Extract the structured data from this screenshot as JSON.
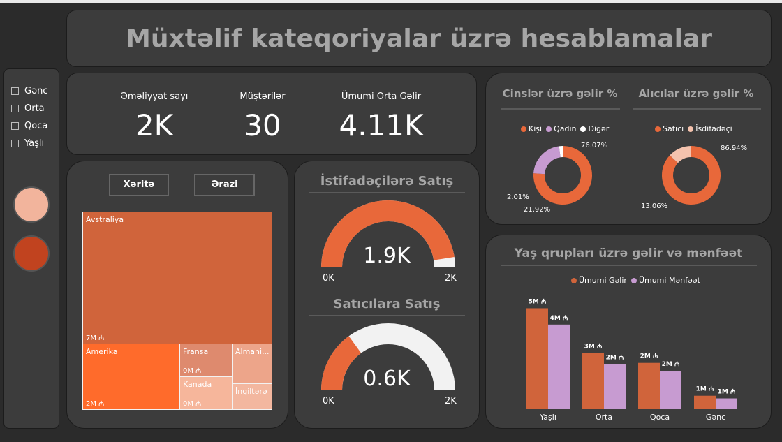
{
  "title": "Müxtəlif kateqoriyalar üzrə hesablamalar",
  "slicer": {
    "items": [
      "Gənc",
      "Orta",
      "Qoca",
      "Yaşlı"
    ],
    "swatch_colors": [
      "#f2b49c",
      "#c1431f"
    ]
  },
  "kpis": [
    {
      "label": "Əməliyyat sayı",
      "value": "2K"
    },
    {
      "label": "Müştərilər",
      "value": "30"
    },
    {
      "label": "Ümumi Orta Gəlir",
      "value": "4.11K"
    }
  ],
  "map": {
    "buttons": [
      "Xəritə",
      "Ərazi"
    ],
    "tiles": [
      {
        "name": "Avstraliya",
        "value": "7M ₼",
        "color": "#d0643b"
      },
      {
        "name": "Amerika",
        "value": "2M ₼",
        "color": "#ff6b2b"
      },
      {
        "name": "Fransa",
        "value": "0M ₼",
        "color": "#de8a6e"
      },
      {
        "name": "Almani...",
        "value": "0M ₼",
        "color": "#eda58a"
      },
      {
        "name": "Kanada",
        "value": "0M ₼",
        "color": "#f6b69b"
      },
      {
        "name": "İngiltərə",
        "value": "",
        "color": "#f3b79f"
      }
    ]
  },
  "gauges": [
    {
      "title": "İstifadəçilərə Satış",
      "value": 1.9,
      "max": 2,
      "value_label": "1.9K",
      "min_label": "0K",
      "max_label": "2K"
    },
    {
      "title": "Satıcılara Satış",
      "value": 0.6,
      "max": 2,
      "value_label": "0.6K",
      "min_label": "0K",
      "max_label": "2K"
    }
  ],
  "colors": {
    "accent": "#e8683a",
    "gauge_bg": "#f2f2f2",
    "purple": "#c79bd1"
  },
  "chart_data": [
    {
      "type": "pie",
      "title": "Cinslər üzrə gəlir %",
      "legend_position": "top",
      "categories": [
        "Kişi",
        "Qadın",
        "Digər"
      ],
      "values": [
        76.07,
        21.92,
        2.01
      ],
      "labels": [
        "76.07%",
        "21.92%",
        "2.01%"
      ],
      "colors": [
        "#e8683a",
        "#c79bd1",
        "#ffffff"
      ]
    },
    {
      "type": "pie",
      "title": "Alıcılar üzrə gəlir %",
      "legend_position": "top",
      "categories": [
        "Satıcı",
        "İsdifadəçi"
      ],
      "values": [
        86.94,
        13.06
      ],
      "labels": [
        "86.94%",
        "13.06%"
      ],
      "colors": [
        "#e8683a",
        "#f4c2ad"
      ]
    },
    {
      "type": "bar",
      "title": "Yaş qrupları üzrə gəlir və mənfəət",
      "legend_position": "top",
      "categories": [
        "Yaşlı",
        "Orta",
        "Qoca",
        "Gənc"
      ],
      "series": [
        {
          "name": "Ümumi Gəlir",
          "values": [
            4.95,
            2.75,
            2.27,
            0.66
          ],
          "labels": [
            "5M ₼",
            "3M ₼",
            "2M ₼",
            "1M ₼"
          ],
          "color": "#d0643b"
        },
        {
          "name": "Ümumi Mənfəət",
          "values": [
            4.15,
            2.21,
            1.88,
            0.53
          ],
          "labels": [
            "4M ₼",
            "2M ₼",
            "2M ₼",
            "1M ₼"
          ],
          "color": "#c79bd1"
        }
      ],
      "ylim": [
        0,
        5
      ]
    }
  ]
}
